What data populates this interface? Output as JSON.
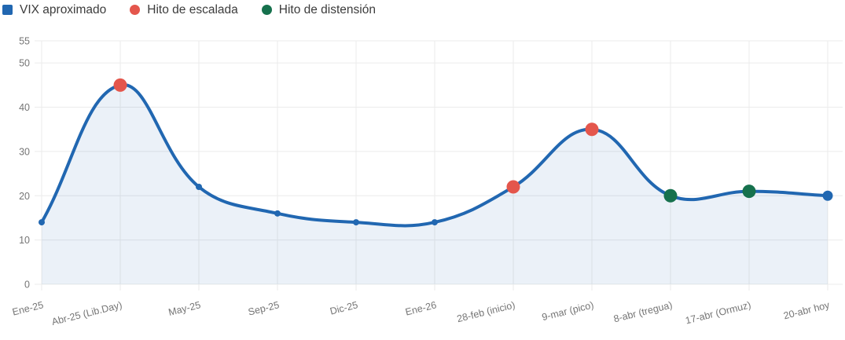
{
  "chart_data": {
    "type": "line",
    "title": "",
    "xlabel": "",
    "ylabel": "",
    "categories": [
      "Ene-25",
      "Abr-25 (Lib.Day)",
      "May-25",
      "Sep-25",
      "Dic-25",
      "Ene-26",
      "28-feb (inicio)",
      "9-mar (pico)",
      "8-abr (tregua)",
      "17-abr (Ormuz)",
      "20-abr hoy"
    ],
    "series": [
      {
        "name": "VIX aproximado",
        "values": [
          14,
          45,
          22,
          16,
          14,
          14,
          22,
          35,
          20,
          21,
          20
        ]
      }
    ],
    "point_milestones": [
      "none",
      "escalada",
      "none",
      "none",
      "none",
      "none",
      "escalada",
      "escalada",
      "distension",
      "distension",
      "hoy"
    ],
    "legend": [
      {
        "label": "VIX aproximado",
        "marker": "square",
        "color_key": "vix_blue"
      },
      {
        "label": "Hito de escalada",
        "marker": "circle",
        "color_key": "escalada_red"
      },
      {
        "label": "Hito de distensión",
        "marker": "circle",
        "color_key": "distension_green"
      }
    ],
    "legend_position": "top-left",
    "grid": true,
    "ylim": [
      0,
      55
    ],
    "yticks": [
      0,
      10,
      20,
      30,
      40,
      50,
      55
    ],
    "colors": {
      "vix_blue": "#2167b1",
      "escalada_red": "#e4564c",
      "distension_green": "#16714d",
      "area_fill": "rgba(33, 103, 177, 0.09)",
      "grid_line": "#ebebeb",
      "tick_text": "#757575",
      "legend_text": "#3c3c3c"
    }
  }
}
